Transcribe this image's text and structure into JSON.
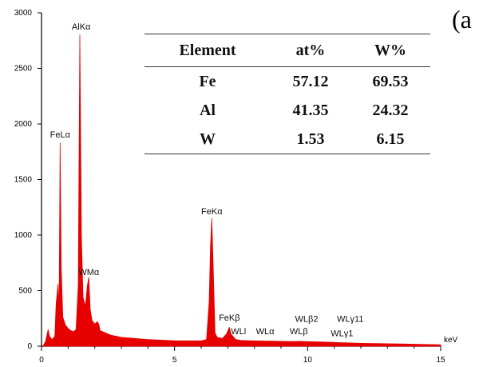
{
  "panel_label": "(a",
  "table": {
    "headers": [
      "Element",
      "at%",
      "W%"
    ],
    "rows": [
      [
        "Fe",
        "57.12",
        "69.53"
      ],
      [
        "Al",
        "41.35",
        "24.32"
      ],
      [
        "W",
        "1.53",
        "6.15"
      ]
    ]
  },
  "chart_data": {
    "type": "line",
    "xlabel": "keV",
    "ylabel": "",
    "xlim": [
      0,
      15
    ],
    "ylim": [
      0,
      3000
    ],
    "x_ticks": [
      0,
      5,
      10,
      15
    ],
    "y_ticks": [
      0,
      500,
      1000,
      1500,
      2000,
      2500,
      3000
    ],
    "grid": false,
    "series": [
      {
        "color": "#e60000",
        "points": [
          [
            0.05,
            0
          ],
          [
            0.15,
            40
          ],
          [
            0.25,
            150
          ],
          [
            0.3,
            90
          ],
          [
            0.4,
            60
          ],
          [
            0.5,
            90
          ],
          [
            0.55,
            380
          ],
          [
            0.62,
            560
          ],
          [
            0.66,
            300
          ],
          [
            0.7,
            1830
          ],
          [
            0.74,
            700
          ],
          [
            0.8,
            260
          ],
          [
            0.9,
            190
          ],
          [
            1.0,
            160
          ],
          [
            1.1,
            140
          ],
          [
            1.2,
            130
          ],
          [
            1.3,
            150
          ],
          [
            1.38,
            550
          ],
          [
            1.44,
            2800
          ],
          [
            1.5,
            980
          ],
          [
            1.56,
            440
          ],
          [
            1.65,
            360
          ],
          [
            1.72,
            540
          ],
          [
            1.775,
            620
          ],
          [
            1.83,
            330
          ],
          [
            1.9,
            230
          ],
          [
            2.0,
            200
          ],
          [
            2.1,
            220
          ],
          [
            2.15,
            200
          ],
          [
            2.2,
            140
          ],
          [
            2.4,
            120
          ],
          [
            2.6,
            100
          ],
          [
            2.8,
            90
          ],
          [
            3.0,
            80
          ],
          [
            3.5,
            70
          ],
          [
            4.0,
            60
          ],
          [
            4.5,
            55
          ],
          [
            5.0,
            50
          ],
          [
            5.5,
            48
          ],
          [
            6.0,
            48
          ],
          [
            6.2,
            60
          ],
          [
            6.3,
            400
          ],
          [
            6.35,
            900
          ],
          [
            6.4,
            1150
          ],
          [
            6.46,
            650
          ],
          [
            6.52,
            120
          ],
          [
            6.6,
            80
          ],
          [
            6.8,
            70
          ],
          [
            6.95,
            110
          ],
          [
            7.06,
            170
          ],
          [
            7.12,
            110
          ],
          [
            7.3,
            60
          ],
          [
            7.5,
            52
          ],
          [
            7.8,
            50
          ],
          [
            8.0,
            48
          ],
          [
            8.4,
            47
          ],
          [
            8.7,
            45
          ],
          [
            9.0,
            44
          ],
          [
            9.5,
            42
          ],
          [
            9.7,
            44
          ],
          [
            10.0,
            42
          ],
          [
            10.5,
            38
          ],
          [
            11.0,
            34
          ],
          [
            11.3,
            32
          ],
          [
            11.5,
            30
          ],
          [
            12.0,
            26
          ],
          [
            13.0,
            22
          ],
          [
            14.0,
            18
          ],
          [
            15.0,
            14
          ]
        ]
      }
    ],
    "annotations": [
      {
        "text": "AlKα",
        "x": 1.49,
        "y": 2820
      },
      {
        "text": "FeLα",
        "x": 0.7,
        "y": 1850
      },
      {
        "text": "WMα",
        "x": 1.78,
        "y": 610
      },
      {
        "text": "FeKα",
        "x": 6.4,
        "y": 1160
      },
      {
        "text": "FeKβ",
        "x": 7.06,
        "y": 200
      },
      {
        "text": "WLl",
        "x": 7.4,
        "y": 80
      },
      {
        "text": "WLα",
        "x": 8.4,
        "y": 80
      },
      {
        "text": "WLβ",
        "x": 9.67,
        "y": 80
      },
      {
        "text": "WLβ2",
        "x": 9.96,
        "y": 190
      },
      {
        "text": "WLγ1",
        "x": 11.29,
        "y": 60
      },
      {
        "text": "WLγ11",
        "x": 11.6,
        "y": 190
      }
    ]
  }
}
